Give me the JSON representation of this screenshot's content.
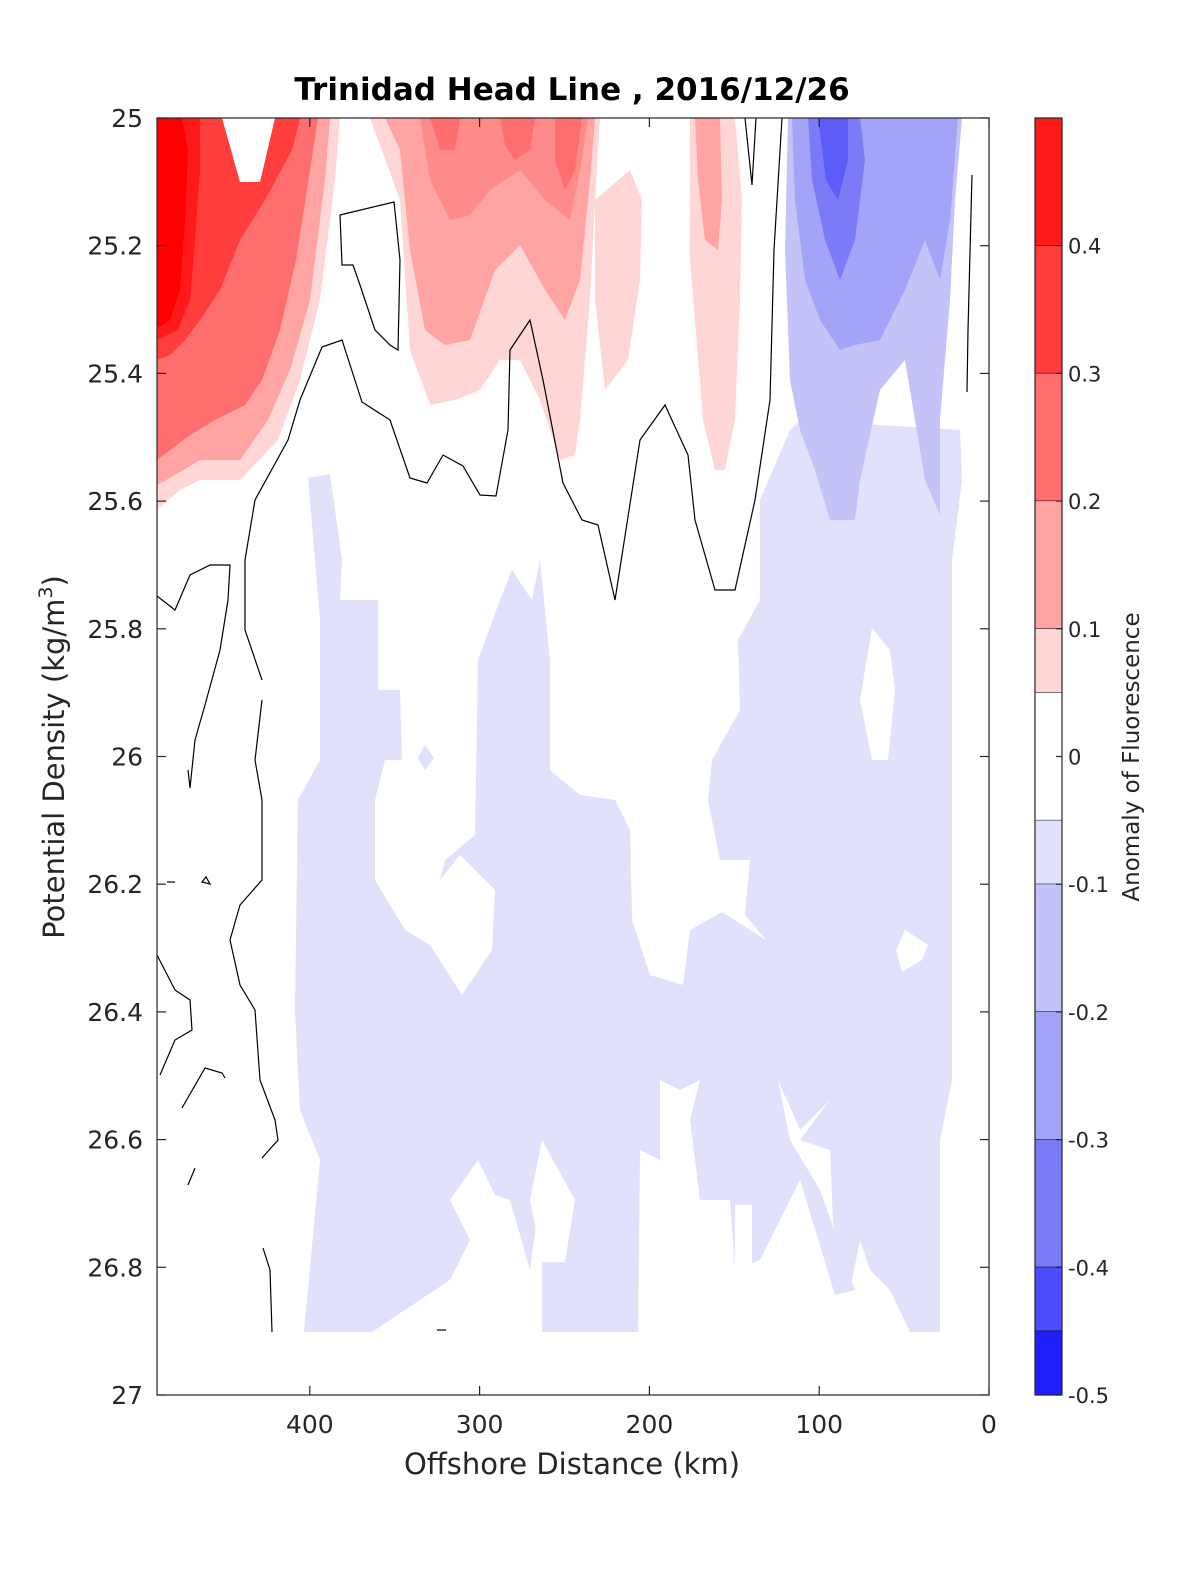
{
  "chart_data": {
    "type": "heatmap",
    "title": "Trinidad Head Line , 2016/12/26",
    "xlabel": "Offshore Distance (km)",
    "ylabel_main": "Potential Density (kg/m",
    "ylabel_sup": "3",
    "ylabel_close": ")",
    "colorbar_label": "Anomaly of Fluorescence",
    "x_range": [
      490,
      0
    ],
    "y_range": [
      25,
      27
    ],
    "x_ticks": [
      400,
      300,
      200,
      100,
      0
    ],
    "x_tick_labels": [
      "400",
      "300",
      "200",
      "100",
      "0"
    ],
    "y_ticks": [
      25,
      25.2,
      25.4,
      25.6,
      25.8,
      26,
      26.2,
      26.4,
      26.6,
      26.8,
      27
    ],
    "y_tick_labels": [
      "25",
      "25.2",
      "25.4",
      "25.6",
      "25.8",
      "26",
      "26.2",
      "26.4",
      "26.6",
      "26.8",
      "27"
    ],
    "colorbar_range": [
      -0.5,
      0.5
    ],
    "colorbar_ticks": [
      0.4,
      0.3,
      0.2,
      0.1,
      0,
      -0.1,
      -0.2,
      -0.3,
      -0.4,
      -0.5
    ],
    "colorbar_tick_labels": [
      "0.4",
      "0.3",
      "0.2",
      "0.1",
      "0",
      "-0.1",
      "-0.2",
      "-0.3",
      "-0.4",
      "-0.5"
    ],
    "colorbar_levels": [
      {
        "lo": 0.4,
        "hi": 0.5,
        "color": "#ff1a1a"
      },
      {
        "lo": 0.3,
        "hi": 0.4,
        "color": "#ff3d3d"
      },
      {
        "lo": 0.2,
        "hi": 0.3,
        "color": "#ff6e6e"
      },
      {
        "lo": 0.1,
        "hi": 0.2,
        "color": "#ffa3a3"
      },
      {
        "lo": 0.05,
        "hi": 0.1,
        "color": "#ffd6d6"
      },
      {
        "lo": -0.05,
        "hi": 0.05,
        "color": "#ffffff"
      },
      {
        "lo": -0.1,
        "hi": -0.05,
        "color": "#e1e1fb"
      },
      {
        "lo": -0.2,
        "hi": -0.1,
        "color": "#c3c3f8"
      },
      {
        "lo": -0.3,
        "hi": -0.2,
        "color": "#a3a3f7"
      },
      {
        "lo": -0.4,
        "hi": -0.3,
        "color": "#7b7bf7"
      },
      {
        "lo": -0.45,
        "hi": -0.4,
        "color": "#4d4dfb"
      },
      {
        "lo": -0.5,
        "hi": -0.45,
        "color": "#1f1ffe"
      }
    ],
    "colors": {
      "strong_positive": "#ff0000",
      "neutral": "#ffffff",
      "strong_negative": "#0000ff",
      "contour_line": "#000000",
      "axis": "#262626"
    },
    "regions": [
      {
        "name": "red-core-offshore",
        "anomaly": 0.45,
        "color": "#ff3030",
        "points": [
          [
            490,
            25
          ],
          [
            420,
            25
          ],
          [
            410,
            25.15
          ],
          [
            430,
            25.3
          ],
          [
            455,
            25.45
          ],
          [
            480,
            25.6
          ],
          [
            490,
            25.6
          ]
        ]
      },
      {
        "name": "red-patch-mid",
        "anomaly": 0.2,
        "color": "#ff8a8a",
        "points": [
          [
            340,
            25
          ],
          [
            240,
            25
          ],
          [
            235,
            25.2
          ],
          [
            255,
            25.45
          ],
          [
            280,
            25.35
          ],
          [
            320,
            25.45
          ],
          [
            345,
            25.25
          ]
        ]
      },
      {
        "name": "pink-patch-inner",
        "anomaly": 0.08,
        "color": "#ffd6d6",
        "points": [
          [
            180,
            25
          ],
          [
            160,
            25
          ],
          [
            150,
            25.2
          ],
          [
            158,
            25.55
          ],
          [
            172,
            25.45
          ],
          [
            182,
            25.2
          ]
        ]
      },
      {
        "name": "blue-core-nearshore",
        "anomaly": -0.25,
        "color": "#a3a3f7",
        "points": [
          [
            120,
            25
          ],
          [
            15,
            25
          ],
          [
            20,
            25.3
          ],
          [
            30,
            25.6
          ],
          [
            85,
            25.6
          ],
          [
            110,
            25.4
          ]
        ]
      },
      {
        "name": "light-blue-deep",
        "anomaly": -0.08,
        "color": "#e1e1fb",
        "points": [
          [
            400,
            25.55
          ],
          [
            120,
            25.7
          ],
          [
            20,
            25.8
          ],
          [
            20,
            26.9
          ],
          [
            400,
            26.9
          ]
        ]
      }
    ]
  }
}
